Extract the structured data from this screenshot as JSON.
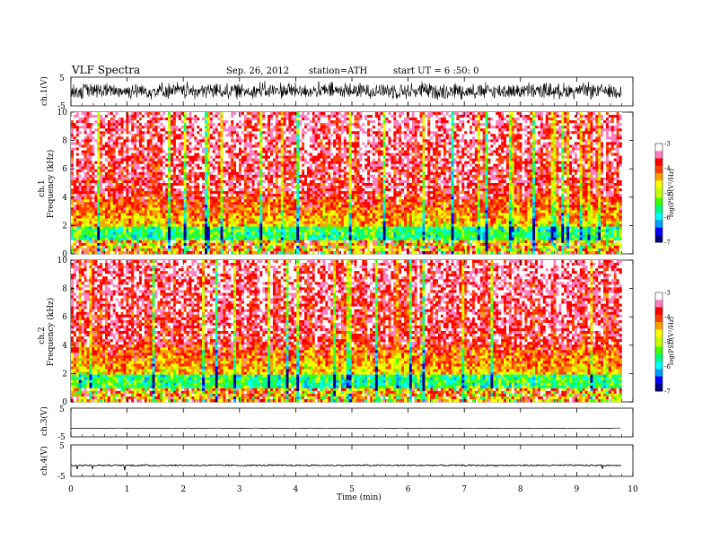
{
  "header": {
    "title": "VLF  Spectra",
    "date": "Sep. 26, 2012",
    "station": "station=ATH",
    "start": "start  UT  =    6  :50: 0"
  },
  "chart_data": [
    {
      "type": "line",
      "id": "ch1",
      "ylabel": "ch.1(V)",
      "ylim": [
        -5,
        5
      ],
      "yticks": [
        "5",
        "-5"
      ],
      "description_of_signal": "dense noisy waveform, roughly -2 to +3 V",
      "xlim": [
        0,
        10
      ]
    },
    {
      "type": "heatmap",
      "id": "ch1-spectrogram",
      "ylabel_top": "ch.1",
      "ylabel": "Frequency (kHz)",
      "ylim": [
        0,
        10
      ],
      "yticks": [
        "0",
        "2",
        "4",
        "6",
        "8",
        "10"
      ],
      "colorbar": {
        "label": "log(PSD(V²/Hz)",
        "ticks": [
          "-3",
          "-4",
          "-5",
          "-6",
          "-7"
        ],
        "range": [
          -7,
          -3
        ]
      },
      "xlim": [
        0,
        9.8
      ],
      "levels": {
        "above_2kHz": "mostly -4 to -3 (red/yellow)",
        "below_2kHz": "-6 to -5 (cyan/green)"
      }
    },
    {
      "type": "heatmap",
      "id": "ch2-spectrogram",
      "ylabel_top": "ch.2",
      "ylabel": "Frequency (kHz)",
      "ylim": [
        0,
        10
      ],
      "yticks": [
        "0",
        "2",
        "4",
        "6",
        "8",
        "10"
      ],
      "colorbar": {
        "label": "log(PSD(V²/Hz)",
        "ticks": [
          "-3",
          "-4",
          "-5",
          "-6",
          "-7"
        ],
        "range": [
          -7,
          -3
        ]
      },
      "xlim": [
        0,
        9.8
      ]
    },
    {
      "type": "line",
      "id": "ch3",
      "ylabel": "ch.3(V)",
      "ylim": [
        -5,
        5
      ],
      "yticks": [
        "5",
        "-5"
      ],
      "level": -2
    },
    {
      "type": "line",
      "id": "ch4",
      "ylabel": "ch.4(V)",
      "ylim": [
        -5,
        5
      ],
      "yticks": [
        "5",
        "-5"
      ],
      "level": -1.5
    }
  ],
  "xaxis": {
    "label": "Time  (min)",
    "range": [
      0,
      10
    ],
    "ticks": [
      "0",
      "1",
      "2",
      "3",
      "4",
      "5",
      "6",
      "7",
      "8",
      "9",
      "10"
    ]
  },
  "colors": {
    "scale": [
      "#000000",
      "#000080",
      "#0000ff",
      "#00a0ff",
      "#00ffff",
      "#00ff80",
      "#40ff00",
      "#c8ff00",
      "#ffff00",
      "#ffa000",
      "#ff4000",
      "#ff0000",
      "#ff80c0",
      "#ffffff"
    ]
  }
}
